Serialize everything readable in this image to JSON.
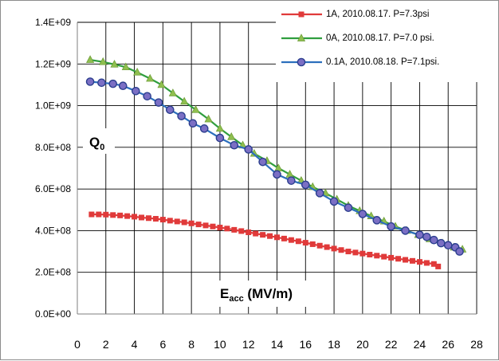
{
  "chart_data": {
    "type": "line",
    "xlim": [
      0,
      28
    ],
    "ylim": [
      0,
      1400000000
    ],
    "x_ticks": [
      "0",
      "2",
      "4",
      "6",
      "8",
      "10",
      "12",
      "14",
      "16",
      "18",
      "20",
      "22",
      "24",
      "26",
      "28"
    ],
    "y_ticks": [
      "0.0E+00",
      "2.0E+08",
      "4.0E+08",
      "6.0E+08",
      "8.0E+08",
      "1.0E+09",
      "1.2E+09",
      "1.4E+09"
    ],
    "ylabel": "Q0",
    "xlabel": "Eacc (MV/m)",
    "grid": true,
    "legend_position": "top-right",
    "series": [
      {
        "name": "1A, 2010.08.17. P=7.3psi",
        "color": "#e03a3a",
        "marker": "square",
        "x": [
          1.0,
          1.5,
          2.0,
          2.5,
          3.0,
          3.5,
          4.0,
          4.5,
          5.0,
          5.5,
          6.0,
          6.5,
          7.0,
          7.5,
          8.0,
          8.5,
          9.0,
          9.5,
          10.0,
          10.5,
          11.0,
          11.5,
          12.0,
          12.5,
          13.0,
          13.5,
          14.0,
          14.5,
          15.0,
          15.5,
          16.0,
          16.5,
          17.0,
          17.5,
          18.0,
          18.5,
          19.0,
          19.5,
          20.0,
          20.5,
          21.0,
          21.5,
          22.0,
          22.5,
          23.0,
          23.5,
          24.0,
          24.5,
          25.0,
          25.3
        ],
        "y": [
          478000000.0,
          478000000.0,
          477000000.0,
          475000000.0,
          473000000.0,
          470000000.0,
          467000000.0,
          463000000.0,
          460000000.0,
          457000000.0,
          453000000.0,
          448000000.0,
          444000000.0,
          440000000.0,
          435000000.0,
          430000000.0,
          425000000.0,
          420000000.0,
          415000000.0,
          410000000.0,
          404000000.0,
          398000000.0,
          392000000.0,
          386000000.0,
          380000000.0,
          374000000.0,
          368000000.0,
          362000000.0,
          355000000.0,
          349000000.0,
          342000000.0,
          335000000.0,
          328000000.0,
          321000000.0,
          314000000.0,
          307000000.0,
          300000000.0,
          295000000.0,
          290000000.0,
          285000000.0,
          280000000.0,
          275000000.0,
          270000000.0,
          265000000.0,
          260000000.0,
          255000000.0,
          250000000.0,
          245000000.0,
          240000000.0,
          228000000.0
        ]
      },
      {
        "name": "0A, 2010.08.17. P=7.0 psi.",
        "color": "#2f9e3f",
        "marker": "triangle",
        "x": [
          0.9,
          1.8,
          2.6,
          3.4,
          4.2,
          5.1,
          5.9,
          6.7,
          7.5,
          8.3,
          9.2,
          10.0,
          10.8,
          11.6,
          12.4,
          13.3,
          14.1,
          14.9,
          15.7,
          16.5,
          17.4,
          18.2,
          19.0,
          19.8,
          20.6,
          21.5,
          22.3,
          23.1,
          23.9,
          24.7,
          25.6,
          26.4,
          27.0
        ],
        "y": [
          1220000000.0,
          1210000000.0,
          1198000000.0,
          1185000000.0,
          1160000000.0,
          1130000000.0,
          1100000000.0,
          1060000000.0,
          1020000000.0,
          980000000.0,
          935000000.0,
          890000000.0,
          850000000.0,
          810000000.0,
          770000000.0,
          735000000.0,
          700000000.0,
          670000000.0,
          640000000.0,
          610000000.0,
          580000000.0,
          550000000.0,
          520000000.0,
          495000000.0,
          470000000.0,
          445000000.0,
          420000000.0,
          400000000.0,
          380000000.0,
          360000000.0,
          340000000.0,
          320000000.0,
          310000000.0
        ]
      },
      {
        "name": "0.1A, 2010.08.18. P=7.1psi.",
        "color": "#2c6fbd",
        "marker": "circle",
        "x": [
          0.9,
          1.7,
          2.5,
          3.2,
          4.1,
          4.9,
          5.7,
          6.5,
          7.3,
          8.1,
          8.9,
          10.0,
          11.0,
          12.0,
          13.0,
          14.0,
          15.0,
          16.0,
          17.0,
          18.0,
          19.0,
          20.0,
          21.0,
          22.0,
          23.0,
          24.0,
          24.5,
          25.0,
          25.5,
          26.0,
          26.5,
          26.8
        ],
        "y": [
          1115000000.0,
          1110000000.0,
          1105000000.0,
          1095000000.0,
          1070000000.0,
          1045000000.0,
          1015000000.0,
          980000000.0,
          950000000.0,
          915000000.0,
          890000000.0,
          845000000.0,
          810000000.0,
          790000000.0,
          730000000.0,
          670000000.0,
          640000000.0,
          620000000.0,
          580000000.0,
          540000000.0,
          510000000.0,
          480000000.0,
          450000000.0,
          420000000.0,
          400000000.0,
          380000000.0,
          370000000.0,
          355000000.0,
          340000000.0,
          330000000.0,
          320000000.0,
          300000000.0
        ]
      }
    ]
  },
  "legend": {
    "title_0": "1A, 2010.08.17. P=7.3psi",
    "title_1": "0A, 2010.08.17. P=7.0 psi.",
    "title_2": "0.1A, 2010.08.18. P=7.1psi."
  },
  "axis_titles": {
    "y_main": "Q",
    "y_sub": "0",
    "x_main": "E",
    "x_sub": "acc",
    "x_rest": " (MV/m)"
  }
}
